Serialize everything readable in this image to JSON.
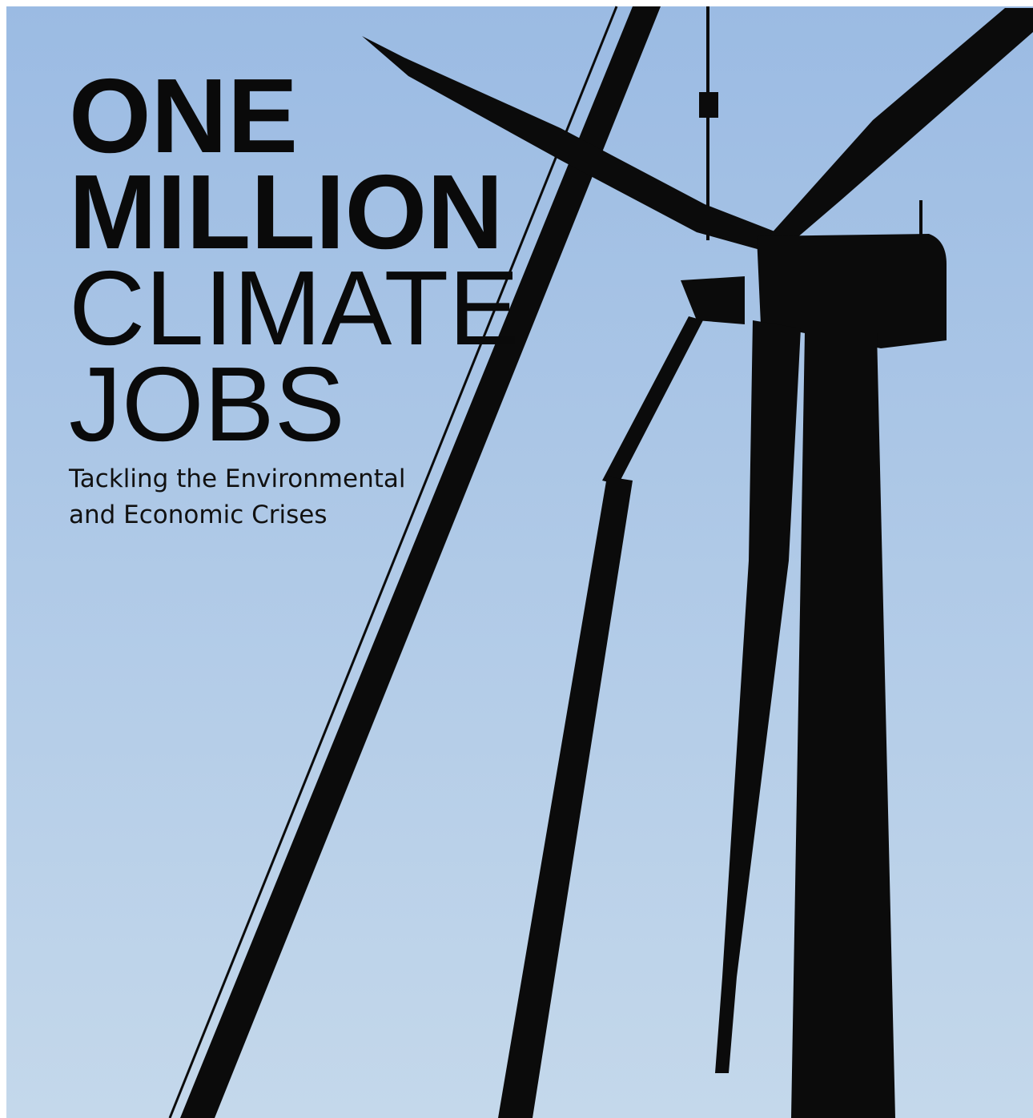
{
  "title": {
    "lines": [
      "ONE",
      "MILLION",
      "CLIMATE",
      "JOBS"
    ]
  },
  "subtitle": {
    "lines": [
      "Tackling the Environmental",
      "and Economic Crises"
    ]
  }
}
